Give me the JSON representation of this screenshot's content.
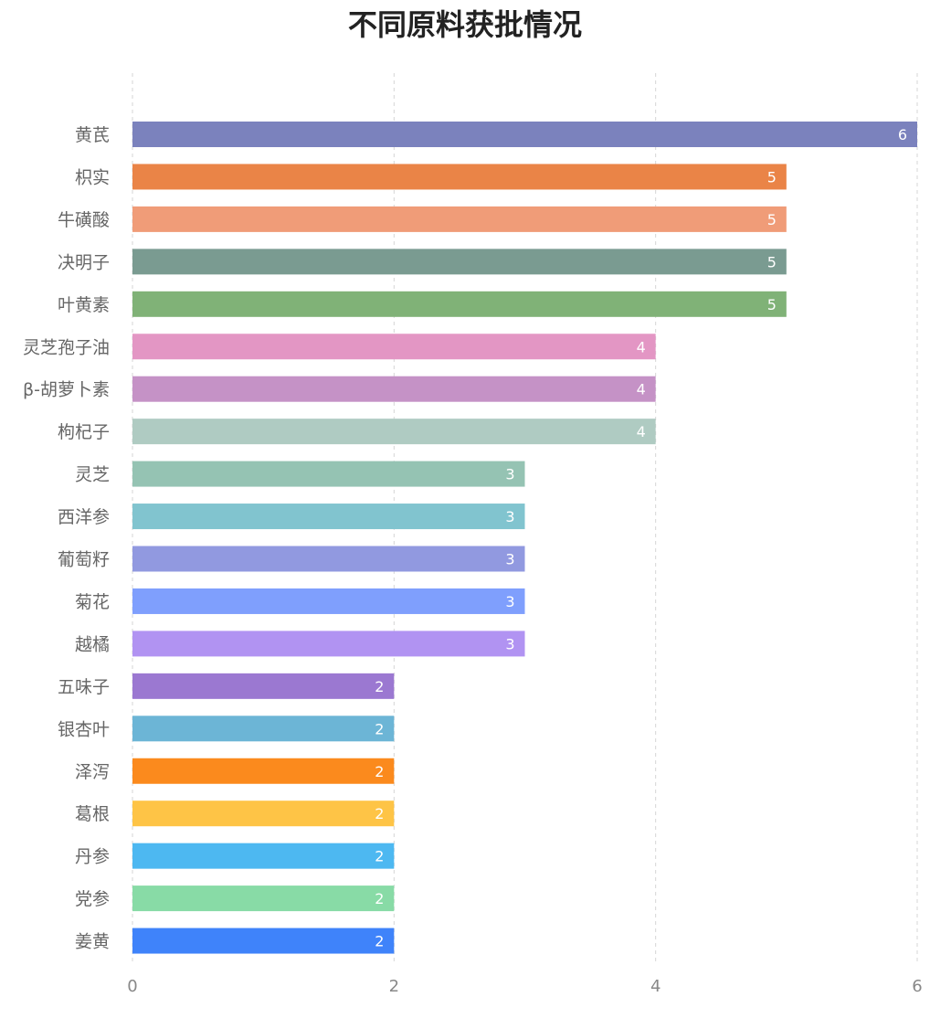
{
  "chart_data": {
    "type": "bar",
    "orientation": "horizontal",
    "title": "不同原料获批情况",
    "xlabel": "",
    "ylabel": "",
    "xlim": [
      0,
      6
    ],
    "xticks": [
      0,
      2,
      4,
      6
    ],
    "grid": true,
    "categories": [
      "黄芪",
      "枳实",
      "牛磺酸",
      "决明子",
      "叶黄素",
      "灵芝孢子油",
      "β-胡萝卜素",
      "枸杞子",
      "灵芝",
      "西洋参",
      "葡萄籽",
      "菊花",
      "越橘",
      "五味子",
      "银杏叶",
      "泽泻",
      "葛根",
      "丹参",
      "党参",
      "姜黄"
    ],
    "values": [
      6,
      5,
      5,
      5,
      5,
      4,
      4,
      4,
      3,
      3,
      3,
      3,
      3,
      2,
      2,
      2,
      2,
      2,
      2,
      2
    ],
    "colors": [
      "#7b82bd",
      "#ea8447",
      "#f09c78",
      "#7a9b91",
      "#80b277",
      "#e396c4",
      "#c592c6",
      "#afcbc2",
      "#95c3b3",
      "#81c4cf",
      "#9199e0",
      "#7f9ffd",
      "#b193f2",
      "#9b78d1",
      "#6cb5d6",
      "#fb8a1d",
      "#fec446",
      "#4db8f1",
      "#88dba6",
      "#3f83fa"
    ]
  }
}
